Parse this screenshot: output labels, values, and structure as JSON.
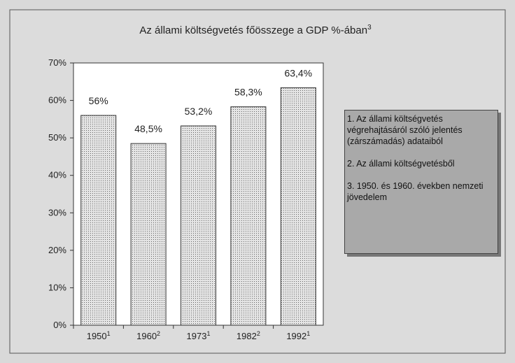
{
  "chart_data": {
    "type": "bar",
    "title": "Az állami költségvetés főösszege a GDP %-ában",
    "title_note": "3",
    "categories": [
      "1950",
      "1960",
      "1973",
      "1982",
      "1992"
    ],
    "category_notes": [
      "1",
      "2",
      "1",
      "2",
      "1"
    ],
    "values": [
      56,
      48.5,
      53.2,
      58.3,
      63.4
    ],
    "value_labels": [
      "56%",
      "48,5%",
      "53,2%",
      "58,3%",
      "63,4%"
    ],
    "color": "#c8c8c8",
    "ylim": [
      0,
      70
    ],
    "yticks": [
      {
        "value": 0,
        "label": "0%"
      },
      {
        "value": 10,
        "label": "10%"
      },
      {
        "value": 20,
        "label": "20%"
      },
      {
        "value": 30,
        "label": "30%"
      },
      {
        "value": 40,
        "label": "40%"
      },
      {
        "value": 50,
        "label": "50%"
      },
      {
        "value": 60,
        "label": "60%"
      },
      {
        "value": 70,
        "label": "70%"
      }
    ],
    "notes": [
      "1. Az állami költségvetés végrehajtásáról szóló jelentés (zárszámadás) adataiból",
      "2. Az állami költségvetésből",
      "3. 1950. és 1960. években nemzeti jövedelem"
    ]
  }
}
